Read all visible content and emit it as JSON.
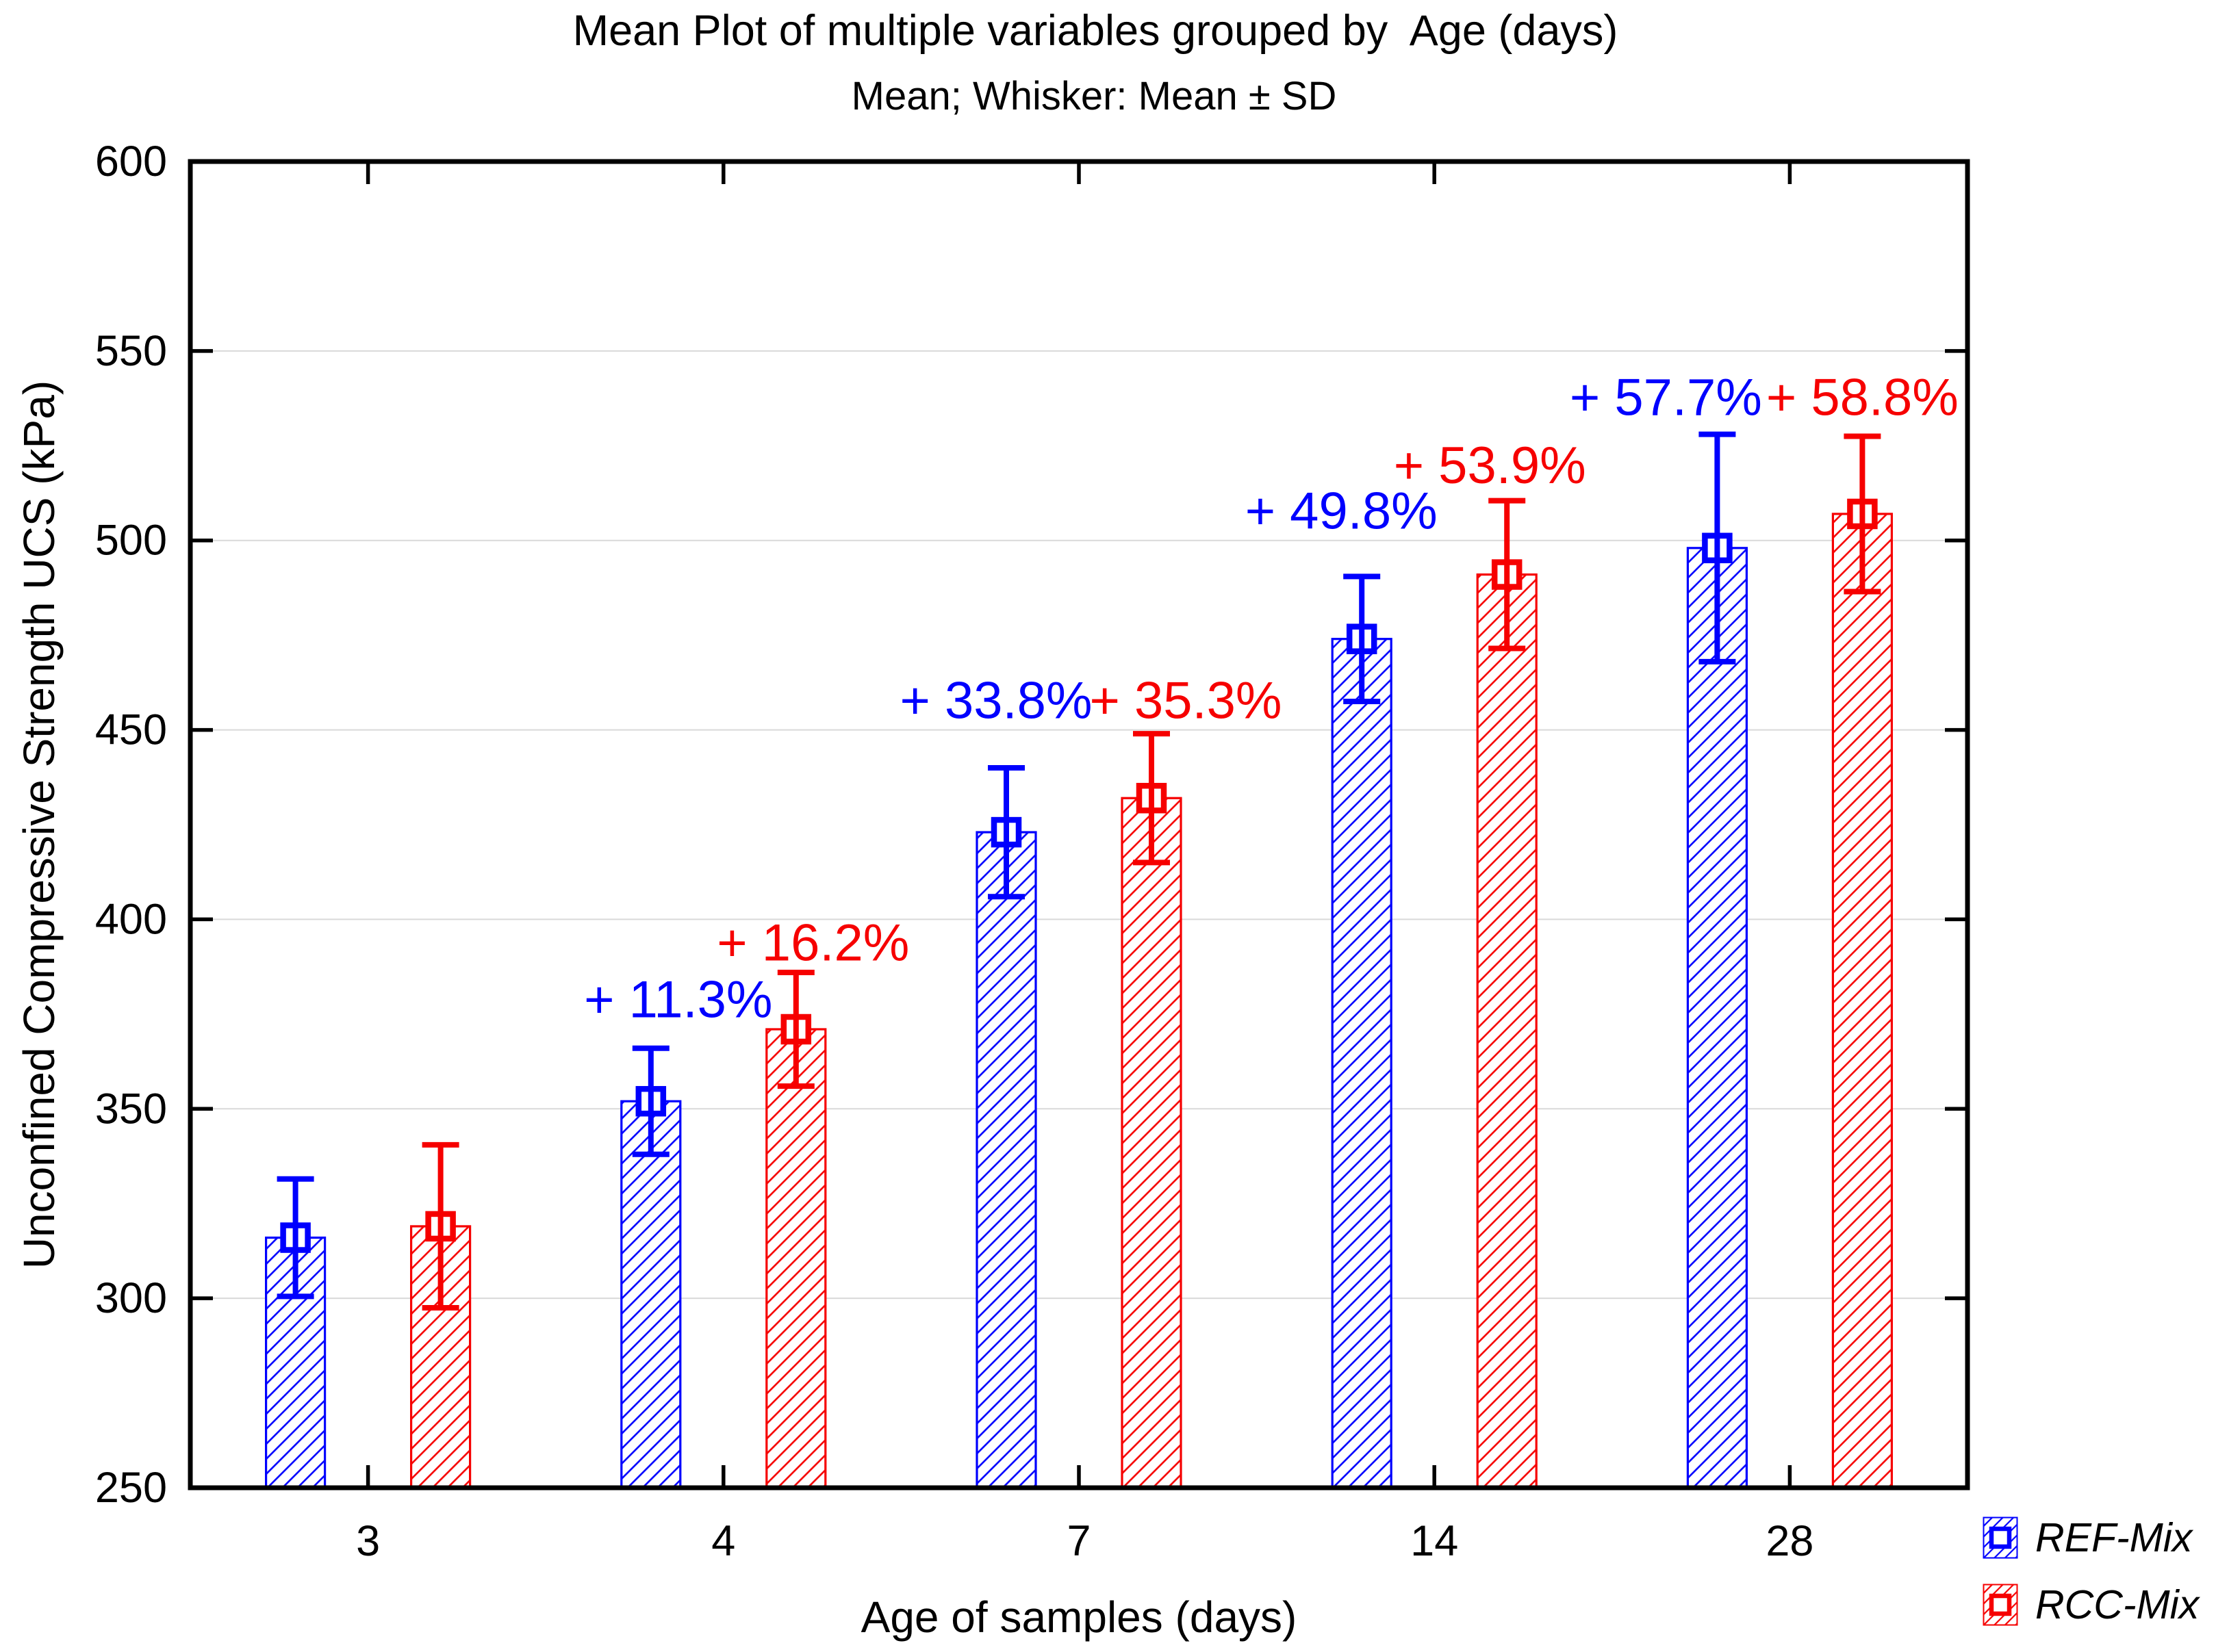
{
  "chart_data": {
    "type": "bar",
    "title": "Mean Plot of multiple variables grouped by  Age (days)",
    "subtitle": "Mean; Whisker: Mean ± SD",
    "xlabel": "Age of samples (days)",
    "ylabel": "Unconfined Compressive Strength UCS (kPa)",
    "categories": [
      "3",
      "4",
      "7",
      "14",
      "28"
    ],
    "ylim": [
      250,
      600
    ],
    "ytick_step": 50,
    "ytick_values": [
      250,
      300,
      350,
      400,
      450,
      500,
      550,
      600
    ],
    "grid": "horizontal gridlines 300-550, light gray",
    "legend_position": "bottom-right",
    "series": [
      {
        "name": "REF-Mix",
        "color": "#0000fe",
        "means": [
          316,
          352,
          423,
          474,
          498
        ],
        "sd": [
          15.5,
          14,
          17,
          16.5,
          30
        ]
      },
      {
        "name": "RCC-Mix",
        "color": "#f60000",
        "means": [
          319,
          371,
          432,
          491,
          507
        ],
        "sd": [
          21.5,
          15,
          17,
          19.5,
          20.5
        ]
      }
    ],
    "annotations": [
      {
        "text": "+ 11.3%",
        "series": 0,
        "group": 1,
        "y": 379,
        "dx": 40
      },
      {
        "text": "+ 16.2%",
        "series": 1,
        "group": 1,
        "y": 394,
        "dx": 25
      },
      {
        "text": "+ 33.8%",
        "series": 0,
        "group": 2,
        "y": 458,
        "dx": -15
      },
      {
        "text": "+ 35.3%",
        "series": 1,
        "group": 2,
        "y": 458,
        "dx": 50
      },
      {
        "text": "+ 49.8%",
        "series": 0,
        "group": 3,
        "y": 508,
        "dx": -30
      },
      {
        "text": "+ 53.9%",
        "series": 1,
        "group": 3,
        "y": 520,
        "dx": -25
      },
      {
        "text": "+ 57.7%",
        "series": 0,
        "group": 4,
        "y": 538,
        "dx": -75
      },
      {
        "text": "+ 58.8%",
        "series": 1,
        "group": 4,
        "y": 538,
        "dx": 0
      }
    ]
  },
  "colors": {
    "background": "#ffffff",
    "frame": "#000000",
    "grid": "#d9d9d9",
    "ref_blue": "#0000fe",
    "rcc_red": "#f60000"
  }
}
